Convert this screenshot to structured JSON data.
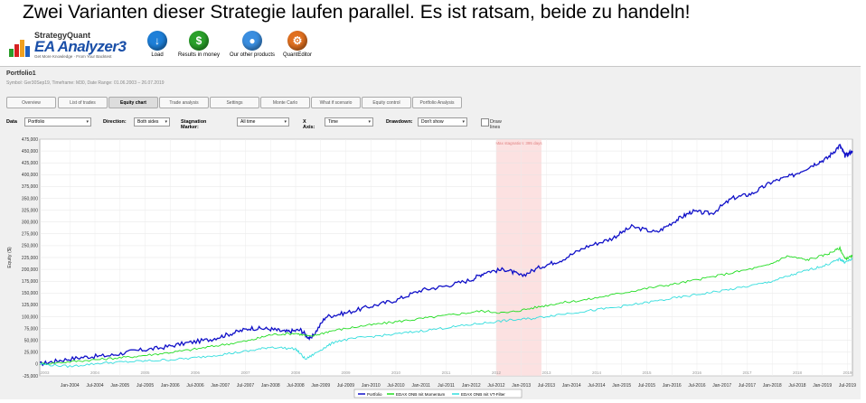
{
  "headline": "Zwei Varianten dieser Strategie laufen parallel. Es ist ratsam, beide zu handeln!",
  "logo": {
    "top": "StrategyQuant",
    "main": "EA Analyzer3",
    "sub": "Get More Knowledge · From Your Backtest"
  },
  "toolbar": {
    "load": "Load",
    "results": "Results in money",
    "products": "Our other products",
    "quant": "QuantEditor"
  },
  "panel": {
    "title": "Portfolio1",
    "subtitle": "Symbol: Ger30Sep19, Timeframe: M30, Date Range: 01.06.2003 – 26.07.2019"
  },
  "tabs": [
    "Overview",
    "List of trades",
    "Equity chart",
    "Trade analysis",
    "Settings",
    "Monte Carlo",
    "What if scenario",
    "Equity control",
    "Portfolio Analysis"
  ],
  "active_tab": 2,
  "controls": {
    "data_label": "Data",
    "data_value": "Portfolio",
    "direction_label": "Direction:",
    "direction_value": "Both sides",
    "stagnation_label": "Stagnation Marker:",
    "stagnation_value": "All time",
    "xaxis_label": "X Axis:",
    "xaxis_value": "Time",
    "drawdown_label": "Drawdown:",
    "drawdown_value": "Don't show",
    "drawlines_label": "Draw lines"
  },
  "chart_data": {
    "type": "line",
    "ylabel": "Equity ($)",
    "ylim": [
      -25000,
      475000
    ],
    "yticks": [
      "475,000",
      "450,000",
      "425,000",
      "400,000",
      "375,000",
      "350,000",
      "325,000",
      "300,000",
      "275,000",
      "250,000",
      "225,000",
      "200,000",
      "175,000",
      "150,000",
      "125,000",
      "100,000",
      "75,000",
      "50,000",
      "25,000",
      "0",
      "-25,000"
    ],
    "xlabels": [
      "Jan-2004",
      "Jul-2004",
      "Jan-2005",
      "Jul-2005",
      "Jan-2006",
      "Jul-2006",
      "Jan-2007",
      "Jul-2007",
      "Jan-2008",
      "Jul-2008",
      "Jan-2009",
      "Jul-2009",
      "Jan-2010",
      "Jul-2010",
      "Jan-2011",
      "Jul-2011",
      "Jan-2012",
      "Jul-2012",
      "Jan-2013",
      "Jul-2013",
      "Jan-2014",
      "Jul-2014",
      "Jan-2015",
      "Jul-2015",
      "Jan-2016",
      "Jul-2016",
      "Jan-2017",
      "Jul-2017",
      "Jan-2018",
      "Jul-2018",
      "Jan-2019",
      "Jul-2019"
    ],
    "years": [
      "2003",
      "2004",
      "2005",
      "2006",
      "2007",
      "2008",
      "2009",
      "2010",
      "2011",
      "2012",
      "2013",
      "2014",
      "2015",
      "2016",
      "2017",
      "2018",
      "2019"
    ],
    "stagnation_label": "Max stagnation: 395 days",
    "stagnation_range": [
      2012.5,
      2013.4
    ],
    "x_range": [
      2003.4,
      2019.6
    ],
    "series": [
      {
        "name": "Portfolio",
        "color": "#1010c8",
        "x": [
          2003.4,
          2003.8,
          2004.3,
          2004.8,
          2005.3,
          2005.8,
          2006.3,
          2006.8,
          2007.2,
          2007.6,
          2008.0,
          2008.3,
          2008.6,
          2008.8,
          2009.1,
          2009.5,
          2010.0,
          2010.5,
          2011.0,
          2011.5,
          2012.0,
          2012.3,
          2012.7,
          2013.0,
          2013.4,
          2013.8,
          2014.3,
          2014.8,
          2015.2,
          2015.7,
          2016.1,
          2016.4,
          2016.8,
          2017.2,
          2017.6,
          2018.0,
          2018.4,
          2018.8,
          2019.1,
          2019.35,
          2019.45,
          2019.6
        ],
        "y": [
          0,
          8000,
          15000,
          18000,
          28000,
          34000,
          44000,
          52000,
          64000,
          76000,
          74000,
          68000,
          72000,
          52000,
          100000,
          108000,
          122000,
          135000,
          156000,
          165000,
          178000,
          195000,
          200000,
          186000,
          206000,
          220000,
          248000,
          265000,
          290000,
          278000,
          305000,
          322000,
          318000,
          350000,
          360000,
          385000,
          398000,
          420000,
          435000,
          462000,
          440000,
          450000
        ]
      },
      {
        "name": "EDAX ONB mit Momentum",
        "color": "#22dd22",
        "x": [
          2003.4,
          2004.0,
          2004.6,
          2005.2,
          2005.8,
          2006.4,
          2007.0,
          2007.6,
          2008.0,
          2008.5,
          2008.8,
          2009.2,
          2009.8,
          2010.4,
          2011.0,
          2011.6,
          2012.2,
          2012.7,
          2013.2,
          2013.7,
          2014.3,
          2014.9,
          2015.5,
          2016.1,
          2016.7,
          2017.3,
          2017.9,
          2018.3,
          2018.7,
          2019.1,
          2019.35,
          2019.45,
          2019.6
        ],
        "y": [
          0,
          5000,
          10000,
          15000,
          22000,
          30000,
          40000,
          50000,
          62000,
          65000,
          58000,
          70000,
          80000,
          88000,
          96000,
          104000,
          112000,
          108000,
          118000,
          128000,
          136000,
          148000,
          160000,
          170000,
          182000,
          195000,
          208000,
          228000,
          220000,
          232000,
          245000,
          222000,
          228000
        ]
      },
      {
        "name": "EDAX ONB mit VT-Filter",
        "color": "#33dddd",
        "x": [
          2003.4,
          2004.0,
          2004.6,
          2005.2,
          2005.8,
          2006.4,
          2007.0,
          2007.6,
          2008.0,
          2008.5,
          2008.7,
          2009.0,
          2009.3,
          2009.8,
          2010.4,
          2011.0,
          2011.6,
          2012.2,
          2012.7,
          2013.2,
          2013.7,
          2014.3,
          2014.9,
          2015.5,
          2016.1,
          2016.7,
          2017.3,
          2017.9,
          2018.3,
          2018.7,
          2019.1,
          2019.35,
          2019.45,
          2019.6
        ],
        "y": [
          0,
          -5000,
          2000,
          5000,
          8000,
          12000,
          20000,
          28000,
          36000,
          32000,
          10000,
          30000,
          48000,
          56000,
          62000,
          70000,
          78000,
          86000,
          92000,
          96000,
          104000,
          112000,
          120000,
          130000,
          140000,
          150000,
          160000,
          172000,
          185000,
          198000,
          210000,
          222000,
          215000,
          222000
        ]
      }
    ]
  }
}
